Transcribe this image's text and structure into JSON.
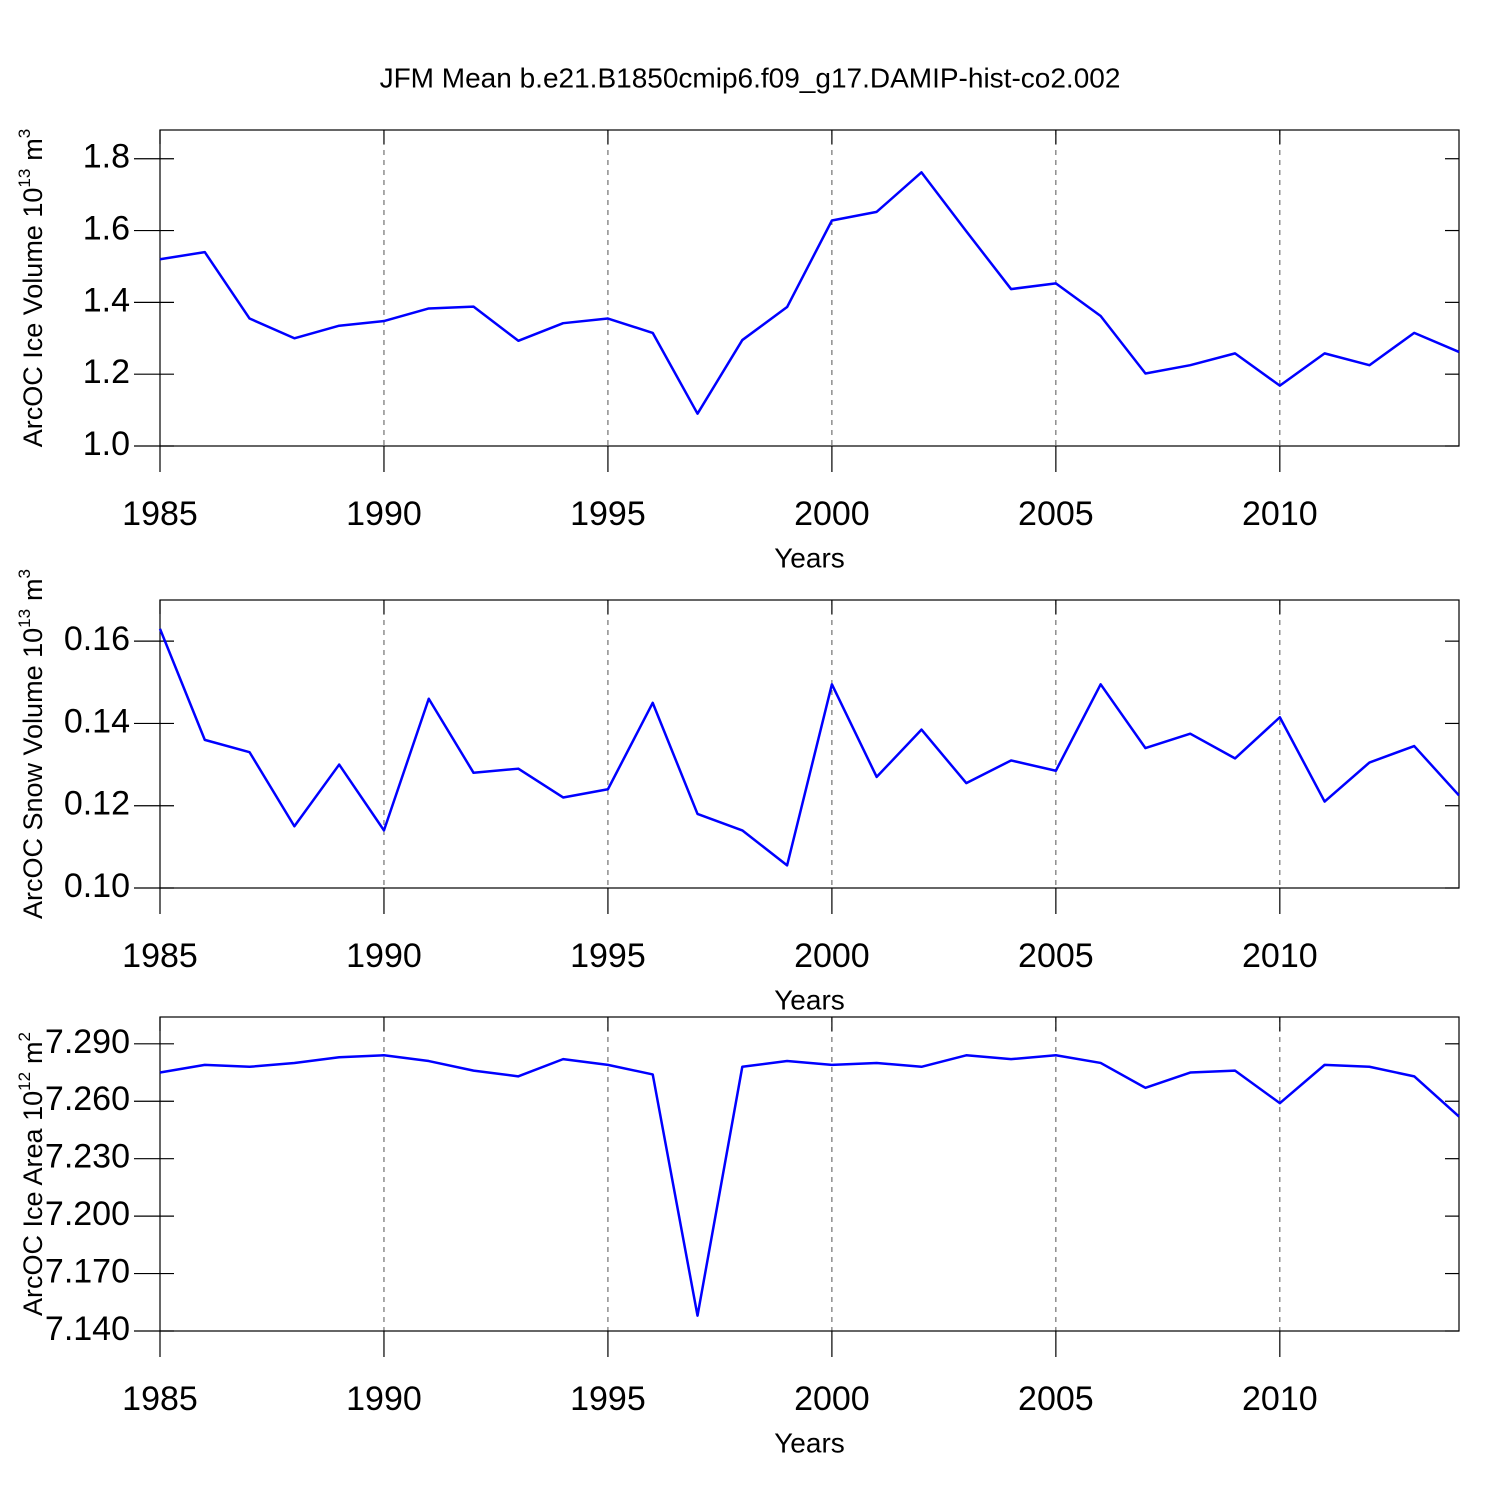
{
  "chart_data": [
    {
      "type": "line",
      "title": "JFM Mean b.e21.B1850cmip6.f09_g17.DAMIP-hist-co2.002",
      "ylabel": {
        "text": "ArcOC Ice Volume 10",
        "exp": "13",
        "unit": "m",
        "unit_exp": "3"
      },
      "xlabel": "Years",
      "color": "#0000ff",
      "grid": true,
      "x": [
        1985,
        1986,
        1987,
        1988,
        1989,
        1990,
        1991,
        1992,
        1993,
        1994,
        1995,
        1996,
        1997,
        1998,
        1999,
        2000,
        2001,
        2002,
        2003,
        2004,
        2005,
        2006,
        2007,
        2008,
        2009,
        2010,
        2011,
        2012,
        2013,
        2014
      ],
      "values": [
        1.52,
        1.54,
        1.355,
        1.3,
        1.335,
        1.348,
        1.383,
        1.388,
        1.293,
        1.342,
        1.355,
        1.315,
        1.09,
        1.295,
        1.387,
        1.628,
        1.652,
        1.762,
        1.598,
        1.437,
        1.453,
        1.362,
        1.202,
        1.225,
        1.258,
        1.168,
        1.258,
        1.225,
        1.315,
        1.262
      ],
      "xlim": [
        1985,
        2014
      ],
      "xticks": [
        1985,
        1990,
        1995,
        2000,
        2005,
        2010
      ],
      "ylim": [
        1.0,
        1.88
      ],
      "yticks": [
        {
          "value": 1,
          "label": "1.0"
        },
        1.2,
        1.4,
        1.6,
        1.8
      ]
    },
    {
      "type": "line",
      "ylabel": {
        "text": "ArcOC Snow Volume 10",
        "exp": "13",
        "unit": "m",
        "unit_exp": "3"
      },
      "xlabel": "Years",
      "color": "#0000ff",
      "grid": true,
      "x": [
        1985,
        1986,
        1987,
        1988,
        1989,
        1990,
        1991,
        1992,
        1993,
        1994,
        1995,
        1996,
        1997,
        1998,
        1999,
        2000,
        2001,
        2002,
        2003,
        2004,
        2005,
        2006,
        2007,
        2008,
        2009,
        2010,
        2011,
        2012,
        2013,
        2014
      ],
      "values": [
        0.163,
        0.136,
        0.133,
        0.115,
        0.13,
        0.114,
        0.146,
        0.128,
        0.129,
        0.122,
        0.124,
        0.145,
        0.118,
        0.114,
        0.1055,
        0.1495,
        0.127,
        0.1385,
        0.1255,
        0.131,
        0.1285,
        0.1495,
        0.134,
        0.1375,
        0.1315,
        0.1415,
        0.121,
        0.1305,
        0.1345,
        0.1225
      ],
      "xlim": [
        1985,
        2014
      ],
      "xticks": [
        1985,
        1990,
        1995,
        2000,
        2005,
        2010
      ],
      "ylim": [
        0.1,
        0.17
      ],
      "yticks": [
        {
          "value": 0.1,
          "label": "0.10"
        },
        0.12,
        0.14,
        0.16
      ]
    },
    {
      "type": "line",
      "ylabel": {
        "text": "ArcOC Ice Area 10",
        "exp": "12",
        "unit": "m",
        "unit_exp": "2"
      },
      "xlabel": "Years",
      "color": "#0000ff",
      "grid": true,
      "x": [
        1985,
        1986,
        1987,
        1988,
        1989,
        1990,
        1991,
        1992,
        1993,
        1994,
        1995,
        1996,
        1997,
        1998,
        1999,
        2000,
        2001,
        2002,
        2003,
        2004,
        2005,
        2006,
        2007,
        2008,
        2009,
        2010,
        2011,
        2012,
        2013,
        2014
      ],
      "values": [
        7.275,
        7.279,
        7.278,
        7.28,
        7.283,
        7.284,
        7.281,
        7.276,
        7.273,
        7.282,
        7.279,
        7.274,
        7.148,
        7.278,
        7.281,
        7.279,
        7.28,
        7.278,
        7.284,
        7.282,
        7.284,
        7.28,
        7.267,
        7.275,
        7.276,
        7.259,
        7.279,
        7.278,
        7.273,
        7.252
      ],
      "xlim": [
        1985,
        2014
      ],
      "xticks": [
        1985,
        1990,
        1995,
        2000,
        2005,
        2010
      ],
      "ylim": [
        7.14,
        7.304
      ],
      "yticks": [
        {
          "value": 7.14,
          "label": "7.140"
        },
        {
          "value": 7.17,
          "label": "7.170"
        },
        {
          "value": 7.2,
          "label": "7.200"
        },
        {
          "value": 7.23,
          "label": "7.230"
        },
        {
          "value": 7.26,
          "label": "7.260"
        },
        {
          "value": 7.29,
          "label": "7.290"
        }
      ]
    }
  ]
}
